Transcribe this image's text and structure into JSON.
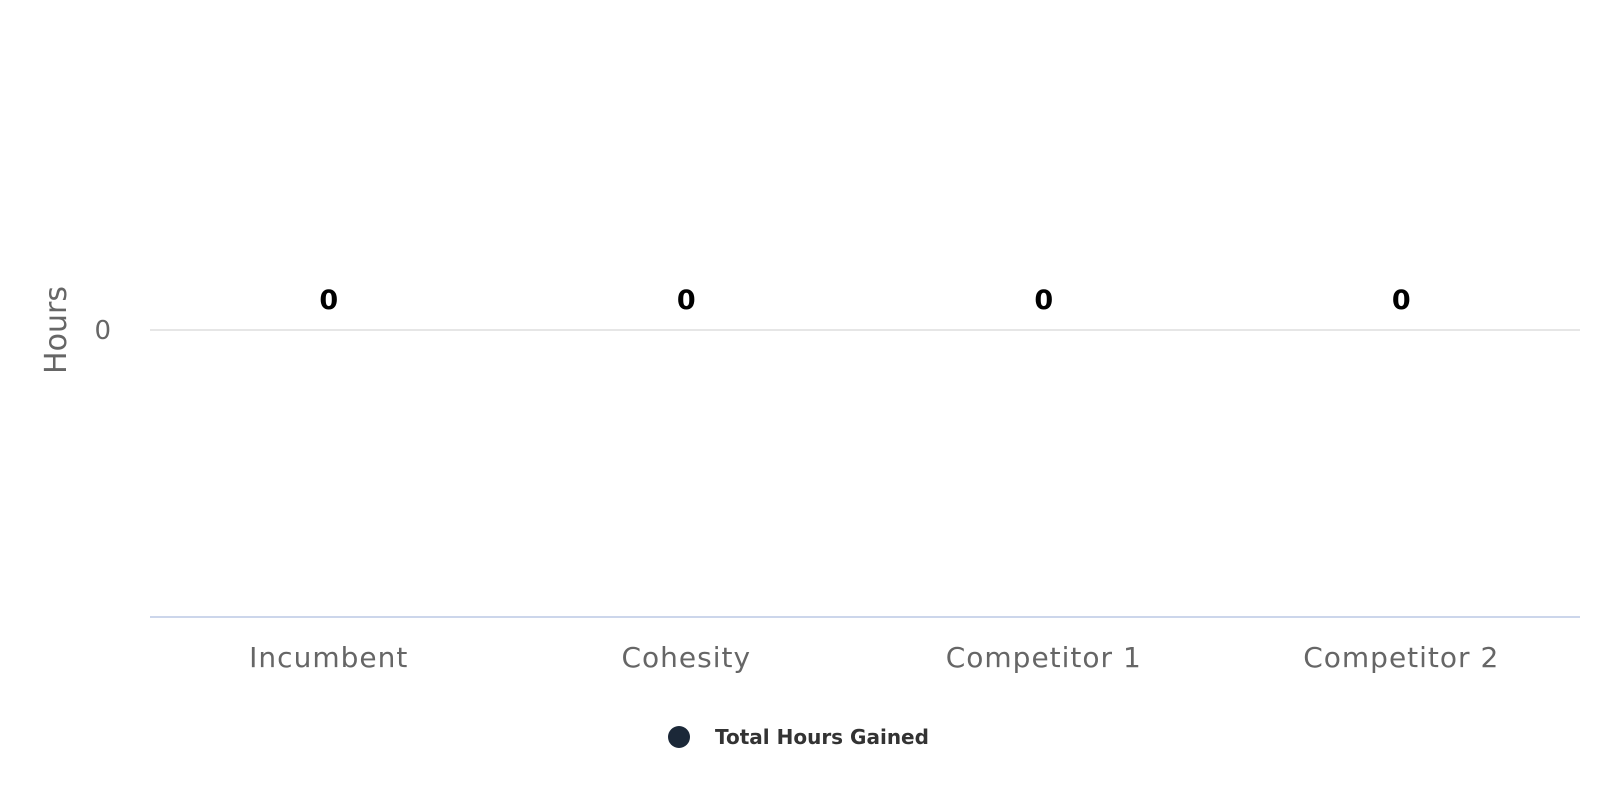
{
  "chart_data": {
    "type": "bar",
    "categories": [
      "Incumbent",
      "Cohesity",
      "Competitor 1",
      "Competitor 2"
    ],
    "series": [
      {
        "name": "Total Hours Gained",
        "values": [
          0,
          0,
          0,
          0
        ],
        "data_labels": [
          "0",
          "0",
          "0",
          "0"
        ],
        "color": "#1b2838"
      }
    ],
    "title": "",
    "xlabel": "",
    "ylabel": "Hours",
    "y_ticks": [
      0
    ],
    "y_tick_labels": [
      "0"
    ],
    "grid": true,
    "legend_position": "bottom-center",
    "colors": {
      "gridline": "#e6e6e6",
      "baseline": "#ccd6eb",
      "axis_text": "#666666",
      "data_label": "#000000",
      "legend_text": "#333333"
    }
  }
}
